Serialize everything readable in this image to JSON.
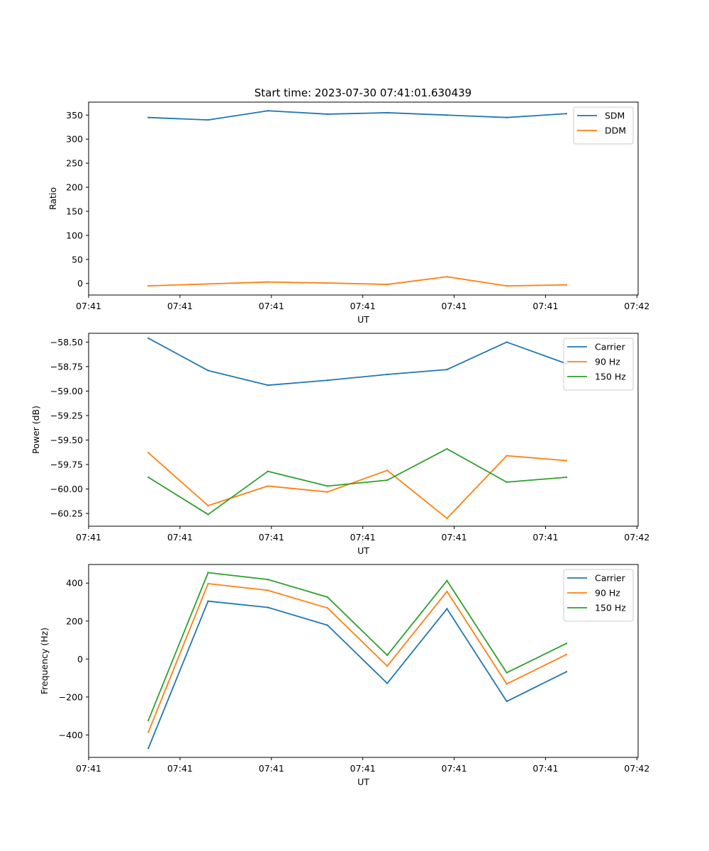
{
  "figure_title": "Start time: 2023-07-30 07:41:01.630439",
  "colors": {
    "blue": "#1f77b4",
    "orange": "#ff7f0e",
    "green": "#2ca02c"
  },
  "chart_data": [
    {
      "type": "line",
      "title": "Start time: 2023-07-30 07:41:01.630439",
      "xlabel": "UT",
      "ylabel": "Ratio",
      "x": [
        1,
        2,
        3,
        4,
        5,
        6,
        7,
        8
      ],
      "xlim": [
        0,
        9.2
      ],
      "ylim": [
        -24,
        377
      ],
      "yticks": [
        0,
        50,
        100,
        150,
        200,
        250,
        300,
        350
      ],
      "xticks": [
        {
          "value": 0,
          "label": "07:41"
        },
        {
          "value": 1.53,
          "label": "07:41"
        },
        {
          "value": 3.06,
          "label": "07:41"
        },
        {
          "value": 4.59,
          "label": "07:41"
        },
        {
          "value": 6.12,
          "label": "07:41"
        },
        {
          "value": 7.65,
          "label": "07:41"
        },
        {
          "value": 9.18,
          "label": "07:42"
        }
      ],
      "legend_position": "top-right",
      "series": [
        {
          "name": "SDM",
          "color": "#1f77b4",
          "values": [
            345,
            340,
            359,
            352,
            355,
            350,
            345,
            353
          ]
        },
        {
          "name": "DDM",
          "color": "#ff7f0e",
          "values": [
            -5,
            -1,
            3,
            1,
            -2,
            14,
            -5,
            -3
          ]
        }
      ]
    },
    {
      "type": "line",
      "title": "",
      "xlabel": "UT",
      "ylabel": "Power (dB)",
      "x": [
        1,
        2,
        3,
        4,
        5,
        6,
        7,
        8
      ],
      "xlim": [
        0,
        9.2
      ],
      "ylim": [
        -60.38,
        -58.41
      ],
      "yticks": [
        -58.5,
        -58.75,
        -59.0,
        -59.25,
        -59.5,
        -59.75,
        -60.0,
        -60.25
      ],
      "xticks": [
        {
          "value": 0,
          "label": "07:41"
        },
        {
          "value": 1.53,
          "label": "07:41"
        },
        {
          "value": 3.06,
          "label": "07:41"
        },
        {
          "value": 4.59,
          "label": "07:41"
        },
        {
          "value": 6.12,
          "label": "07:41"
        },
        {
          "value": 7.65,
          "label": "07:41"
        },
        {
          "value": 9.18,
          "label": "07:42"
        }
      ],
      "legend_position": "top-right",
      "series": [
        {
          "name": "Carrier",
          "color": "#1f77b4",
          "values": [
            -58.46,
            -58.79,
            -58.94,
            -58.89,
            -58.83,
            -58.78,
            -58.5,
            -58.72
          ]
        },
        {
          "name": "90 Hz",
          "color": "#ff7f0e",
          "values": [
            -59.63,
            -60.17,
            -59.97,
            -60.03,
            -59.81,
            -60.3,
            -59.66,
            -59.71
          ]
        },
        {
          "name": "150 Hz",
          "color": "#2ca02c",
          "values": [
            -59.88,
            -60.26,
            -59.82,
            -59.97,
            -59.91,
            -59.59,
            -59.93,
            -59.88
          ]
        }
      ]
    },
    {
      "type": "line",
      "title": "",
      "xlabel": "UT",
      "ylabel": "Frequency (Hz)",
      "x": [
        1,
        2,
        3,
        4,
        5,
        6,
        7,
        8
      ],
      "xlim": [
        0,
        9.2
      ],
      "ylim": [
        -518,
        498
      ],
      "yticks": [
        400,
        200,
        0,
        -200,
        -400
      ],
      "xticks": [
        {
          "value": 0,
          "label": "07:41"
        },
        {
          "value": 1.53,
          "label": "07:41"
        },
        {
          "value": 3.06,
          "label": "07:41"
        },
        {
          "value": 4.59,
          "label": "07:41"
        },
        {
          "value": 6.12,
          "label": "07:41"
        },
        {
          "value": 7.65,
          "label": "07:41"
        },
        {
          "value": 9.18,
          "label": "07:42"
        }
      ],
      "legend_position": "top-right",
      "series": [
        {
          "name": "Carrier",
          "color": "#1f77b4",
          "values": [
            -470,
            305,
            272,
            178,
            -128,
            265,
            -223,
            -67
          ]
        },
        {
          "name": "90 Hz",
          "color": "#ff7f0e",
          "values": [
            -385,
            397,
            362,
            269,
            -37,
            356,
            -131,
            24
          ]
        },
        {
          "name": "150 Hz",
          "color": "#2ca02c",
          "values": [
            -323,
            455,
            419,
            326,
            20,
            413,
            -72,
            82
          ]
        }
      ]
    }
  ]
}
